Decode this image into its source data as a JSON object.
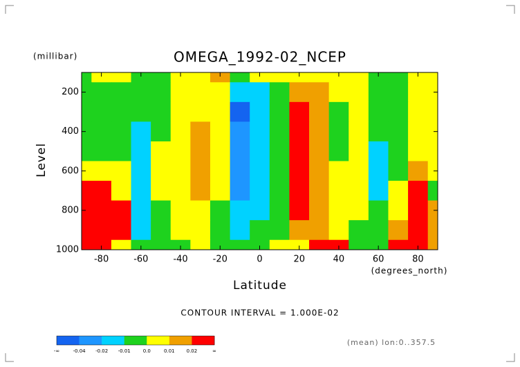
{
  "chart_data": {
    "type": "contour",
    "title": "OMEGA_1992-02_NCEP",
    "y_unit": "(millibar)",
    "y_label": "Level",
    "x_label": "Latitude",
    "x_unit": "(degrees_north)",
    "subtitle": "CONTOUR INTERVAL = 1.000E-02",
    "note": "(mean) lon:0..357.5",
    "xlim": [
      -90,
      90
    ],
    "ylim": [
      1000,
      100
    ],
    "xticks": [
      -80,
      -60,
      -40,
      -20,
      0,
      20,
      40,
      60,
      80
    ],
    "yticks": [
      200,
      400,
      600,
      800,
      1000
    ],
    "x": [
      -90,
      -80,
      -70,
      -60,
      -50,
      -40,
      -30,
      -20,
      -10,
      0,
      10,
      20,
      30,
      40,
      50,
      60,
      70,
      80,
      90
    ],
    "y": [
      100,
      200,
      300,
      400,
      500,
      600,
      700,
      800,
      900,
      1000
    ],
    "values": [
      [
        -0.005,
        0.005,
        0.005,
        -0.005,
        -0.005,
        0.005,
        0.005,
        0.015,
        -0.005,
        0.005,
        0.005,
        0.005,
        0.005,
        0.005,
        0.005,
        -0.005,
        -0.005,
        0.005,
        0.005
      ],
      [
        -0.005,
        -0.005,
        -0.005,
        -0.005,
        -0.005,
        0.005,
        0.005,
        0.005,
        -0.015,
        -0.015,
        -0.005,
        0.015,
        0.015,
        0.005,
        0.005,
        -0.005,
        -0.005,
        0.005,
        0.005
      ],
      [
        -0.005,
        -0.005,
        -0.005,
        -0.005,
        -0.005,
        0.005,
        0.005,
        0.005,
        -0.045,
        -0.015,
        -0.005,
        0.03,
        0.015,
        -0.005,
        0.005,
        -0.005,
        -0.005,
        0.005,
        0.005
      ],
      [
        -0.005,
        -0.005,
        -0.005,
        -0.015,
        -0.005,
        0.005,
        0.015,
        0.005,
        -0.03,
        -0.015,
        -0.005,
        0.03,
        0.015,
        -0.005,
        0.005,
        -0.005,
        -0.005,
        0.005,
        0.005
      ],
      [
        -0.005,
        -0.005,
        -0.005,
        -0.015,
        0.005,
        0.005,
        0.015,
        0.005,
        -0.03,
        -0.015,
        -0.005,
        0.03,
        0.015,
        -0.005,
        0.005,
        -0.015,
        -0.005,
        0.005,
        0.005
      ],
      [
        0.005,
        0.005,
        0.005,
        -0.015,
        0.005,
        0.005,
        0.015,
        0.005,
        -0.03,
        -0.015,
        -0.005,
        0.03,
        0.015,
        0.005,
        0.005,
        -0.015,
        -0.005,
        0.015,
        0.005
      ],
      [
        0.03,
        0.03,
        0.005,
        -0.015,
        0.005,
        0.005,
        0.015,
        0.005,
        -0.03,
        -0.015,
        -0.005,
        0.03,
        0.015,
        0.005,
        0.005,
        -0.015,
        0.005,
        0.03,
        -0.005
      ],
      [
        0.03,
        0.03,
        0.03,
        -0.015,
        -0.005,
        0.005,
        0.005,
        -0.005,
        -0.015,
        -0.015,
        -0.005,
        0.03,
        0.015,
        0.005,
        0.005,
        -0.005,
        0.005,
        0.03,
        0.015
      ],
      [
        0.03,
        0.03,
        0.03,
        -0.015,
        -0.005,
        0.005,
        0.005,
        -0.005,
        -0.015,
        -0.005,
        -0.005,
        0.015,
        0.015,
        0.005,
        -0.005,
        -0.005,
        0.015,
        0.03,
        0.015
      ],
      [
        0.03,
        0.03,
        0.005,
        -0.005,
        -0.005,
        -0.005,
        0.005,
        -0.005,
        -0.005,
        -0.005,
        0.005,
        0.005,
        0.03,
        0.03,
        -0.005,
        -0.005,
        0.03,
        0.03,
        0.015
      ]
    ],
    "levels": [
      -0.04,
      -0.02,
      -0.01,
      {
        "value": 0,
        "label": "0.0"
      },
      0.01,
      0.02
    ],
    "low_label": "-∞",
    "high_label": "∞",
    "colors": [
      "#1464f0",
      "#1e96ff",
      "#00d2ff",
      "#1ed21e",
      "#ffff00",
      "#f0a000",
      "#ff0000"
    ]
  }
}
